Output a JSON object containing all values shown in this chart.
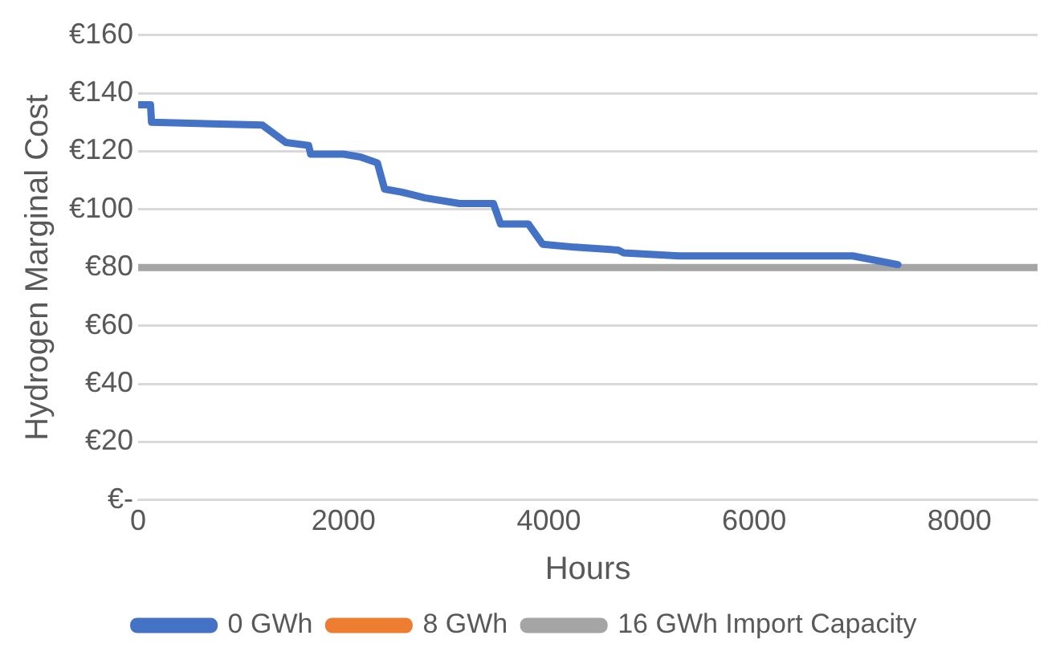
{
  "chart_data": {
    "type": "line",
    "xlabel": "Hours",
    "ylabel": "Hydrogen Marginal Cost",
    "xlim": [
      0,
      8760
    ],
    "xticks": [
      0,
      2000,
      4000,
      6000,
      8000
    ],
    "ylim": [
      0,
      160
    ],
    "yticks": [
      {
        "value": 0,
        "label": "€-"
      },
      {
        "value": 20,
        "label": "€20"
      },
      {
        "value": 40,
        "label": "€40"
      },
      {
        "value": 60,
        "label": "€60"
      },
      {
        "value": 80,
        "label": "€80"
      },
      {
        "value": 100,
        "label": "€100"
      },
      {
        "value": 120,
        "label": "€120"
      },
      {
        "value": 140,
        "label": "€140"
      },
      {
        "value": 160,
        "label": "€160"
      }
    ],
    "grid": "y",
    "legend": "bottom",
    "marker": "none",
    "line_style": "solid",
    "series": [
      {
        "name": "0 GWh",
        "color": "#4472c4",
        "x": [
          0,
          120,
          130,
          1210,
          1440,
          1660,
          1680,
          2000,
          2170,
          2330,
          2400,
          2560,
          2790,
          3130,
          3460,
          3530,
          3800,
          3940,
          4250,
          4675,
          4730,
          5270,
          6960,
          7400
        ],
        "values": [
          136,
          136,
          130,
          129,
          123,
          122,
          119,
          119,
          118,
          116,
          107,
          106,
          104,
          102,
          102,
          95,
          95,
          88,
          87,
          86,
          85,
          84,
          84,
          81
        ]
      },
      {
        "name": "8 GWh",
        "color": "#ed7d31"
      },
      {
        "name": "16 GWh Import Capacity",
        "color": "#a5a5a5",
        "x": [
          0,
          8760
        ],
        "values": [
          80,
          80
        ]
      }
    ]
  }
}
